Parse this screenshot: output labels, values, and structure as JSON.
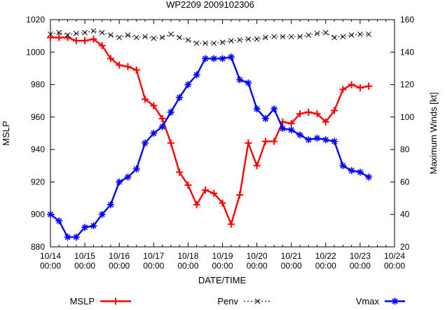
{
  "chart_data": {
    "type": "line",
    "title": "WP2209 2009102306",
    "xlabel": "DATE/TIME",
    "ylabel_left": "MSLP",
    "ylabel_right": "Maximum Winds [kt]",
    "ylim_left": [
      880,
      1020
    ],
    "ylim_right": [
      20,
      160
    ],
    "ytick_step": 20,
    "grid": false,
    "legend_position": "bottom",
    "interval_hours": 6,
    "x_start": "10/14 00:00",
    "x_ticks": [
      {
        "date": "10/14",
        "time": "00:00"
      },
      {
        "date": "10/15",
        "time": "00:00"
      },
      {
        "date": "10/16",
        "time": "00:00"
      },
      {
        "date": "10/17",
        "time": "00:00"
      },
      {
        "date": "10/18",
        "time": "00:00"
      },
      {
        "date": "10/19",
        "time": "00:00"
      },
      {
        "date": "10/20",
        "time": "00:00"
      },
      {
        "date": "10/21",
        "time": "00:00"
      },
      {
        "date": "10/22",
        "time": "00:00"
      },
      {
        "date": "10/23",
        "time": "00:00"
      },
      {
        "date": "10/24",
        "time": "00:00"
      }
    ],
    "series": [
      {
        "name": "MSLP",
        "axis": "left",
        "color": "#ff0000",
        "marker": "plus",
        "line": "solid",
        "values": [
          1009,
          1009,
          1009,
          1007,
          1007,
          1008,
          1004,
          996,
          992,
          991,
          989,
          971,
          967,
          959,
          944,
          926,
          918,
          906,
          915,
          913,
          907,
          894,
          912,
          944,
          930,
          945,
          945,
          957,
          956,
          962,
          963,
          962,
          957,
          964,
          977,
          980,
          978,
          979
        ]
      },
      {
        "name": "Penv",
        "axis": "left",
        "color": "#000000",
        "marker": "cross",
        "line": "dotted",
        "values": [
          1011,
          1012,
          1010.5,
          1011.5,
          1012,
          1013,
          1012,
          1010.5,
          1009,
          1010.5,
          1009,
          1009.5,
          1008.5,
          1009,
          1011,
          1009,
          1007.5,
          1005.5,
          1005.5,
          1005.5,
          1006,
          1007,
          1007.5,
          1008,
          1008,
          1009,
          1009.5,
          1009.5,
          1009.5,
          1009.5,
          1010.5,
          1011.5,
          1012,
          1009,
          1009.5,
          1010.5,
          1011,
          1011
        ]
      },
      {
        "name": "Vmax",
        "axis": "right",
        "color": "#0000ff",
        "marker": "star",
        "line": "solid",
        "values": [
          40,
          36,
          26,
          26,
          32,
          33,
          40,
          46,
          60,
          63,
          68,
          84,
          90,
          94,
          103,
          112,
          120,
          126,
          136,
          136,
          136,
          137,
          123,
          121,
          105,
          99,
          105,
          93,
          92,
          89,
          86,
          87,
          86,
          85,
          70,
          67,
          66,
          63
        ]
      }
    ]
  }
}
